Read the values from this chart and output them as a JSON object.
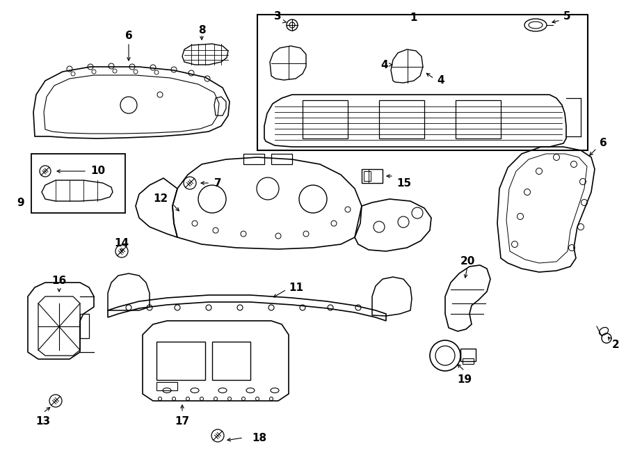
{
  "bg_color": "#ffffff",
  "lc": "black",
  "lw": 1.0,
  "fig_width": 9.0,
  "fig_height": 6.61,
  "dpi": 100,
  "label_fontsize": 11,
  "label_fontweight": "bold"
}
